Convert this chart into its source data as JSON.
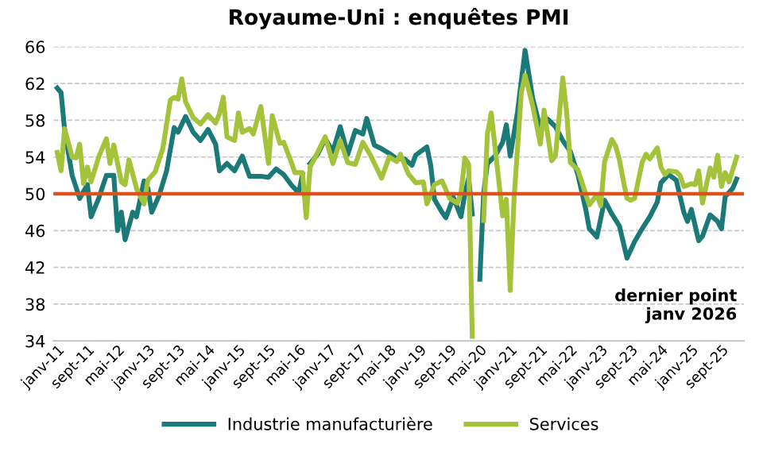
{
  "chart_data": {
    "type": "line",
    "title": "Royaume-Uni : enquêtes PMI",
    "series": [
      {
        "name": "Industrie manufacturière",
        "color": "#1b7a78",
        "x": [
          "2011-01",
          "2011-02",
          "2011-03",
          "2011-05",
          "2011-07",
          "2011-09",
          "2011-10",
          "2011-12",
          "2012-02",
          "2012-04",
          "2012-05",
          "2012-06",
          "2012-07",
          "2012-09",
          "2012-10",
          "2012-12",
          "2013-01",
          "2013-02",
          "2013-04",
          "2013-06",
          "2013-08",
          "2013-09",
          "2013-11",
          "2014-01",
          "2014-03",
          "2014-05",
          "2014-07",
          "2014-08",
          "2014-10",
          "2014-12",
          "2015-02",
          "2015-04",
          "2015-07",
          "2015-09",
          "2015-11",
          "2016-01",
          "2016-03",
          "2016-05",
          "2016-06",
          "2016-07",
          "2016-08",
          "2016-10",
          "2016-12",
          "2017-02",
          "2017-04",
          "2017-06",
          "2017-08",
          "2017-10",
          "2017-11",
          "2018-01",
          "2018-03",
          "2018-05",
          "2018-07",
          "2018-09",
          "2018-11",
          "2018-12",
          "2019-03",
          "2019-04",
          "2019-05",
          "2019-07",
          "2019-08",
          "2019-10",
          "2019-12",
          "2020-01",
          "2020-02",
          "2020-03",
          "2020-04",
          "2020-05",
          "2020-06",
          "2020-07",
          "2020-09",
          "2020-11",
          "2020-12",
          "2021-01",
          "2021-03",
          "2021-05",
          "2021-07",
          "2021-09",
          "2021-11",
          "2022-01",
          "2022-03",
          "2022-05",
          "2022-07",
          "2022-09",
          "2022-10",
          "2022-12",
          "2023-02",
          "2023-04",
          "2023-06",
          "2023-08",
          "2023-10",
          "2023-12",
          "2024-02",
          "2024-04",
          "2024-05",
          "2024-07",
          "2024-09",
          "2024-11",
          "2024-12",
          "2025-01",
          "2025-03",
          "2025-04",
          "2025-06",
          "2025-08",
          "2025-09",
          "2025-10",
          "2025-12",
          "2026-01"
        ],
        "values": [
          61.5,
          61,
          57,
          52,
          49.5,
          51,
          47.5,
          49.5,
          52,
          52,
          46,
          48,
          45,
          48,
          47.5,
          51.4,
          50.6,
          48,
          49.8,
          52.5,
          57.2,
          56.7,
          58.4,
          56.7,
          55.8,
          57,
          55.4,
          52.5,
          53.3,
          52.5,
          54.1,
          51.9,
          51.9,
          51.8,
          52.7,
          52.1,
          51,
          50.1,
          52.1,
          null,
          53.3,
          54.3,
          56,
          54.6,
          57.3,
          54.3,
          56.9,
          56.5,
          58.2,
          55.3,
          54.9,
          54.4,
          53.8,
          53.8,
          53.1,
          54.2,
          55.1,
          53.1,
          49.4,
          48,
          47.4,
          49.6,
          47.5,
          50,
          51.7,
          47.8,
          null,
          40.7,
          50.1,
          53.3,
          54.1,
          55.6,
          57.5,
          54.1,
          58.9,
          65.6,
          60.4,
          57.1,
          58.1,
          57.3,
          55.8,
          54.6,
          52.1,
          48.4,
          46.2,
          45.3,
          49.3,
          47.8,
          46.5,
          43,
          44.8,
          46.2,
          47.5,
          49.1,
          51.2,
          52.1,
          51.5,
          48,
          47,
          48.3,
          44.9,
          45.4,
          47.7,
          47,
          46.2,
          49.7,
          50.6,
          51.6
        ]
      },
      {
        "name": "Services",
        "color": "#a4c23a",
        "x": [
          "2011-01",
          "2011-02",
          "2011-03",
          "2011-05",
          "2011-06",
          "2011-07",
          "2011-08",
          "2011-09",
          "2011-10",
          "2011-12",
          "2012-02",
          "2012-03",
          "2012-04",
          "2012-06",
          "2012-07",
          "2012-08",
          "2012-10",
          "2012-12",
          "2013-01",
          "2013-03",
          "2013-05",
          "2013-07",
          "2013-08",
          "2013-09",
          "2013-10",
          "2013-11",
          "2014-01",
          "2014-03",
          "2014-05",
          "2014-07",
          "2014-08",
          "2014-09",
          "2014-10",
          "2014-12",
          "2015-01",
          "2015-02",
          "2015-04",
          "2015-05",
          "2015-07",
          "2015-09",
          "2015-10",
          "2015-12",
          "2016-01",
          "2016-03",
          "2016-04",
          "2016-06",
          "2016-07",
          "2016-08",
          "2016-10",
          "2016-12",
          "2017-02",
          "2017-04",
          "2017-06",
          "2017-08",
          "2017-10",
          "2017-12",
          "2018-03",
          "2018-05",
          "2018-07",
          "2018-08",
          "2018-10",
          "2018-12",
          "2019-02",
          "2019-03",
          "2019-05",
          "2019-07",
          "2019-09",
          "2019-11",
          "2019-12",
          "2020-01",
          "2020-02",
          "2020-03",
          "2020-04",
          "2020-05",
          "2020-06",
          "2020-07",
          "2020-08",
          "2020-10",
          "2020-11",
          "2020-12",
          "2021-01",
          "2021-02",
          "2021-04",
          "2021-05",
          "2021-07",
          "2021-09",
          "2021-10",
          "2021-12",
          "2022-01",
          "2022-03",
          "2022-04",
          "2022-05",
          "2022-07",
          "2022-09",
          "2022-10",
          "2022-12",
          "2023-01",
          "2023-02",
          "2023-04",
          "2023-05",
          "2023-06",
          "2023-07",
          "2023-08",
          "2023-09",
          "2023-10",
          "2023-12",
          "2024-01",
          "2024-02",
          "2024-04",
          "2024-05",
          "2024-06",
          "2024-07",
          "2024-09",
          "2024-10",
          "2024-11",
          "2025-01",
          "2025-02",
          "2025-03",
          "2025-04",
          "2025-05",
          "2025-06",
          "2025-07",
          "2025-08",
          "2025-09",
          "2025-10",
          "2025-11",
          "2026-01"
        ],
        "values": [
          54.5,
          52.5,
          57.1,
          54,
          53.9,
          55.4,
          51.1,
          52.9,
          51.3,
          54,
          56,
          53.3,
          55.3,
          51.3,
          51,
          53.7,
          50.6,
          48.9,
          51.5,
          52.4,
          54.9,
          60.2,
          60.5,
          60.3,
          62.5,
          60,
          58.3,
          57.6,
          58.6,
          57.7,
          58.7,
          60.5,
          56.2,
          55.8,
          58.8,
          56.7,
          57.1,
          56.5,
          59.5,
          53.3,
          58.5,
          55.5,
          55.6,
          53.5,
          52.3,
          52.3,
          47.4,
          52.9,
          54.5,
          56.2,
          53.3,
          55.8,
          53.4,
          53.2,
          55.6,
          54.2,
          51.7,
          54,
          53.5,
          54.3,
          52.2,
          51.2,
          51.3,
          48.9,
          51,
          51.4,
          49.5,
          49,
          50,
          53.9,
          53.2,
          34.5,
          null,
          null,
          47.1,
          56.5,
          58.8,
          51.4,
          47.6,
          49.4,
          39.5,
          49.5,
          61,
          62.9,
          59.6,
          55.4,
          59.1,
          53.6,
          54.1,
          62.6,
          58.9,
          53.4,
          52.6,
          50,
          48.8,
          49.9,
          48.7,
          53.5,
          55.9,
          55.2,
          53.7,
          51.5,
          49.5,
          49.3,
          49.5,
          53.4,
          54.3,
          53.8,
          55,
          52.9,
          52.1,
          52.5,
          52.4,
          52,
          50.8,
          51.1,
          51,
          52.5,
          49,
          50.9,
          52.8,
          51.8,
          54.2,
          50.8,
          52.3,
          51.3,
          54
        ]
      }
    ],
    "xlim": [
      "2010-12",
      "2026-03"
    ],
    "xticks": [
      {
        "value": "2011-01",
        "label": "janv-11"
      },
      {
        "value": "2011-09",
        "label": "sept-11"
      },
      {
        "value": "2012-05",
        "label": "mai-12"
      },
      {
        "value": "2013-01",
        "label": "janv-13"
      },
      {
        "value": "2013-09",
        "label": "sept-13"
      },
      {
        "value": "2014-05",
        "label": "mai-14"
      },
      {
        "value": "2015-01",
        "label": "janv-15"
      },
      {
        "value": "2015-09",
        "label": "sept-15"
      },
      {
        "value": "2016-05",
        "label": "mai-16"
      },
      {
        "value": "2017-01",
        "label": "janv-17"
      },
      {
        "value": "2017-09",
        "label": "sept-17"
      },
      {
        "value": "2018-05",
        "label": "mai-18"
      },
      {
        "value": "2019-01",
        "label": "janv-19"
      },
      {
        "value": "2019-09",
        "label": "sept-19"
      },
      {
        "value": "2020-05",
        "label": "mai-20"
      },
      {
        "value": "2021-01",
        "label": "janv-21"
      },
      {
        "value": "2021-09",
        "label": "sept-21"
      },
      {
        "value": "2022-05",
        "label": "mai-22"
      },
      {
        "value": "2023-01",
        "label": "janv-23"
      },
      {
        "value": "2023-09",
        "label": "sept-23"
      },
      {
        "value": "2024-05",
        "label": "mai-24"
      },
      {
        "value": "2025-01",
        "label": "janv-25"
      },
      {
        "value": "2025-09",
        "label": "sept-25"
      }
    ],
    "ylim": [
      34,
      66
    ],
    "yticks": [
      34,
      38,
      42,
      46,
      50,
      54,
      58,
      62,
      66
    ],
    "ref_lines": [
      {
        "axis": "y",
        "value": 50,
        "label": null,
        "color": "#d9531e"
      }
    ],
    "annotations": [
      "dernier point\njanv 2026"
    ],
    "grid": "y",
    "legend": "bottom",
    "marker": "none",
    "line_style": "solid"
  }
}
